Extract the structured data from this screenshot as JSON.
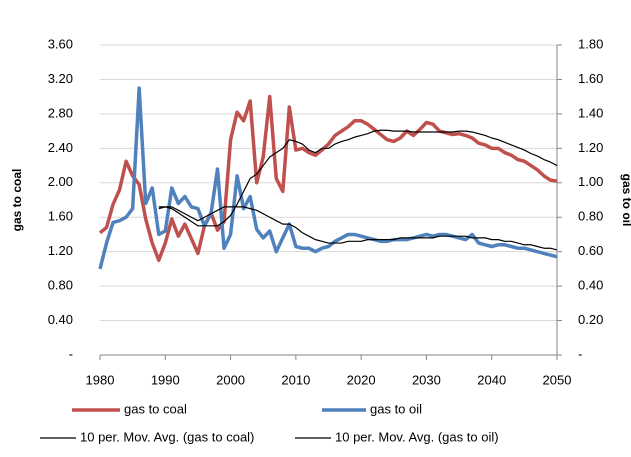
{
  "chart_data": {
    "type": "line",
    "ylabel": "gas to coal",
    "y2label": "gas to oil",
    "x": [
      1980,
      1981,
      1982,
      1983,
      1984,
      1985,
      1986,
      1987,
      1988,
      1989,
      1990,
      1991,
      1992,
      1993,
      1994,
      1995,
      1996,
      1997,
      1998,
      1999,
      2000,
      2001,
      2002,
      2003,
      2004,
      2005,
      2006,
      2007,
      2008,
      2009,
      2010,
      2011,
      2012,
      2013,
      2014,
      2015,
      2016,
      2017,
      2018,
      2019,
      2020,
      2021,
      2022,
      2023,
      2024,
      2025,
      2026,
      2027,
      2028,
      2029,
      2030,
      2031,
      2032,
      2033,
      2034,
      2035,
      2036,
      2037,
      2038,
      2039,
      2040,
      2041,
      2042,
      2043,
      2044,
      2045,
      2046,
      2047,
      2048,
      2049,
      2050
    ],
    "xlim": [
      1980,
      2050
    ],
    "xticks": [
      1980,
      1990,
      2000,
      2010,
      2020,
      2030,
      2040,
      2050
    ],
    "ylim": [
      0,
      3.6
    ],
    "yticks": [
      {
        "value": 0,
        "label": "-"
      },
      {
        "value": 0.4,
        "label": "0.40"
      },
      {
        "value": 0.8,
        "label": "0.80"
      },
      {
        "value": 1.2,
        "label": "1.20"
      },
      {
        "value": 1.6,
        "label": "1.60"
      },
      {
        "value": 2.0,
        "label": "2.00"
      },
      {
        "value": 2.4,
        "label": "2.40"
      },
      {
        "value": 2.8,
        "label": "2.80"
      },
      {
        "value": 3.2,
        "label": "3.20"
      },
      {
        "value": 3.6,
        "label": "3.60"
      }
    ],
    "y2lim": [
      0,
      1.8
    ],
    "y2ticks": [
      {
        "value": 0,
        "label": "-"
      },
      {
        "value": 0.2,
        "label": "0.20"
      },
      {
        "value": 0.4,
        "label": "0.40"
      },
      {
        "value": 0.6,
        "label": "0.60"
      },
      {
        "value": 0.8,
        "label": "0.80"
      },
      {
        "value": 1.0,
        "label": "1.00"
      },
      {
        "value": 1.2,
        "label": "1.20"
      },
      {
        "value": 1.4,
        "label": "1.40"
      },
      {
        "value": 1.6,
        "label": "1.60"
      },
      {
        "value": 1.8,
        "label": "1.80"
      }
    ],
    "grid": true,
    "legend": "bottom",
    "series": [
      {
        "name": "gas to coal",
        "color": "#c0504d",
        "width": 3.5,
        "values": [
          1.42,
          1.48,
          1.75,
          1.92,
          2.25,
          2.08,
          1.98,
          1.58,
          1.3,
          1.1,
          1.3,
          1.58,
          1.38,
          1.52,
          1.35,
          1.18,
          1.5,
          1.65,
          1.45,
          1.55,
          2.5,
          2.82,
          2.72,
          2.95,
          2.0,
          2.3,
          3.0,
          2.05,
          1.9,
          2.88,
          2.38,
          2.4,
          2.35,
          2.32,
          2.38,
          2.45,
          2.55,
          2.6,
          2.65,
          2.72,
          2.72,
          2.68,
          2.62,
          2.56,
          2.5,
          2.48,
          2.52,
          2.6,
          2.55,
          2.62,
          2.7,
          2.68,
          2.6,
          2.58,
          2.56,
          2.57,
          2.55,
          2.52,
          2.46,
          2.44,
          2.4,
          2.4,
          2.35,
          2.32,
          2.27,
          2.25,
          2.2,
          2.15,
          2.08,
          2.03,
          2.02
        ]
      },
      {
        "name": "gas to oil",
        "color": "#4f81bd",
        "width": 3.5,
        "axis": "y2",
        "values": [
          0.5,
          0.65,
          0.77,
          0.78,
          0.8,
          0.85,
          1.55,
          0.88,
          0.97,
          0.7,
          0.72,
          0.97,
          0.88,
          0.92,
          0.86,
          0.85,
          0.75,
          0.82,
          1.08,
          0.62,
          0.7,
          1.04,
          0.85,
          0.92,
          0.73,
          0.68,
          0.72,
          0.6,
          0.68,
          0.76,
          0.63,
          0.62,
          0.62,
          0.6,
          0.62,
          0.63,
          0.66,
          0.68,
          0.7,
          0.7,
          0.69,
          0.68,
          0.67,
          0.66,
          0.66,
          0.67,
          0.67,
          0.67,
          0.68,
          0.69,
          0.7,
          0.69,
          0.7,
          0.7,
          0.69,
          0.68,
          0.67,
          0.7,
          0.65,
          0.64,
          0.63,
          0.64,
          0.64,
          0.63,
          0.62,
          0.62,
          0.61,
          0.6,
          0.59,
          0.58,
          0.57
        ]
      },
      {
        "name": "10 per. Mov. Avg. (gas to coal)",
        "color": "#000000",
        "width": 1.2,
        "values": [
          null,
          null,
          null,
          null,
          null,
          null,
          null,
          null,
          null,
          1.72,
          1.72,
          1.7,
          1.65,
          1.6,
          1.55,
          1.5,
          1.5,
          1.5,
          1.5,
          1.55,
          1.62,
          1.75,
          1.9,
          2.05,
          2.1,
          2.2,
          2.3,
          2.35,
          2.4,
          2.5,
          2.48,
          2.45,
          2.38,
          2.35,
          2.4,
          2.4,
          2.45,
          2.48,
          2.5,
          2.53,
          2.55,
          2.57,
          2.6,
          2.61,
          2.61,
          2.6,
          2.6,
          2.6,
          2.59,
          2.59,
          2.59,
          2.59,
          2.59,
          2.59,
          2.59,
          2.6,
          2.6,
          2.59,
          2.57,
          2.55,
          2.52,
          2.5,
          2.47,
          2.44,
          2.41,
          2.38,
          2.34,
          2.31,
          2.27,
          2.24,
          2.2
        ]
      },
      {
        "name": "10 per. Mov. Avg. (gas to oil)",
        "color": "#000000",
        "width": 1.2,
        "axis": "y2",
        "values": [
          null,
          null,
          null,
          null,
          null,
          null,
          null,
          null,
          null,
          0.85,
          0.86,
          0.86,
          0.84,
          0.82,
          0.8,
          0.78,
          0.8,
          0.82,
          0.84,
          0.86,
          0.86,
          0.86,
          0.86,
          0.85,
          0.84,
          0.82,
          0.8,
          0.78,
          0.76,
          0.76,
          0.74,
          0.71,
          0.69,
          0.67,
          0.66,
          0.65,
          0.65,
          0.65,
          0.66,
          0.66,
          0.66,
          0.67,
          0.67,
          0.67,
          0.67,
          0.67,
          0.68,
          0.68,
          0.68,
          0.68,
          0.68,
          0.68,
          0.69,
          0.69,
          0.69,
          0.69,
          0.69,
          0.68,
          0.68,
          0.68,
          0.67,
          0.67,
          0.66,
          0.66,
          0.65,
          0.64,
          0.64,
          0.63,
          0.62,
          0.62,
          0.61
        ]
      }
    ]
  }
}
